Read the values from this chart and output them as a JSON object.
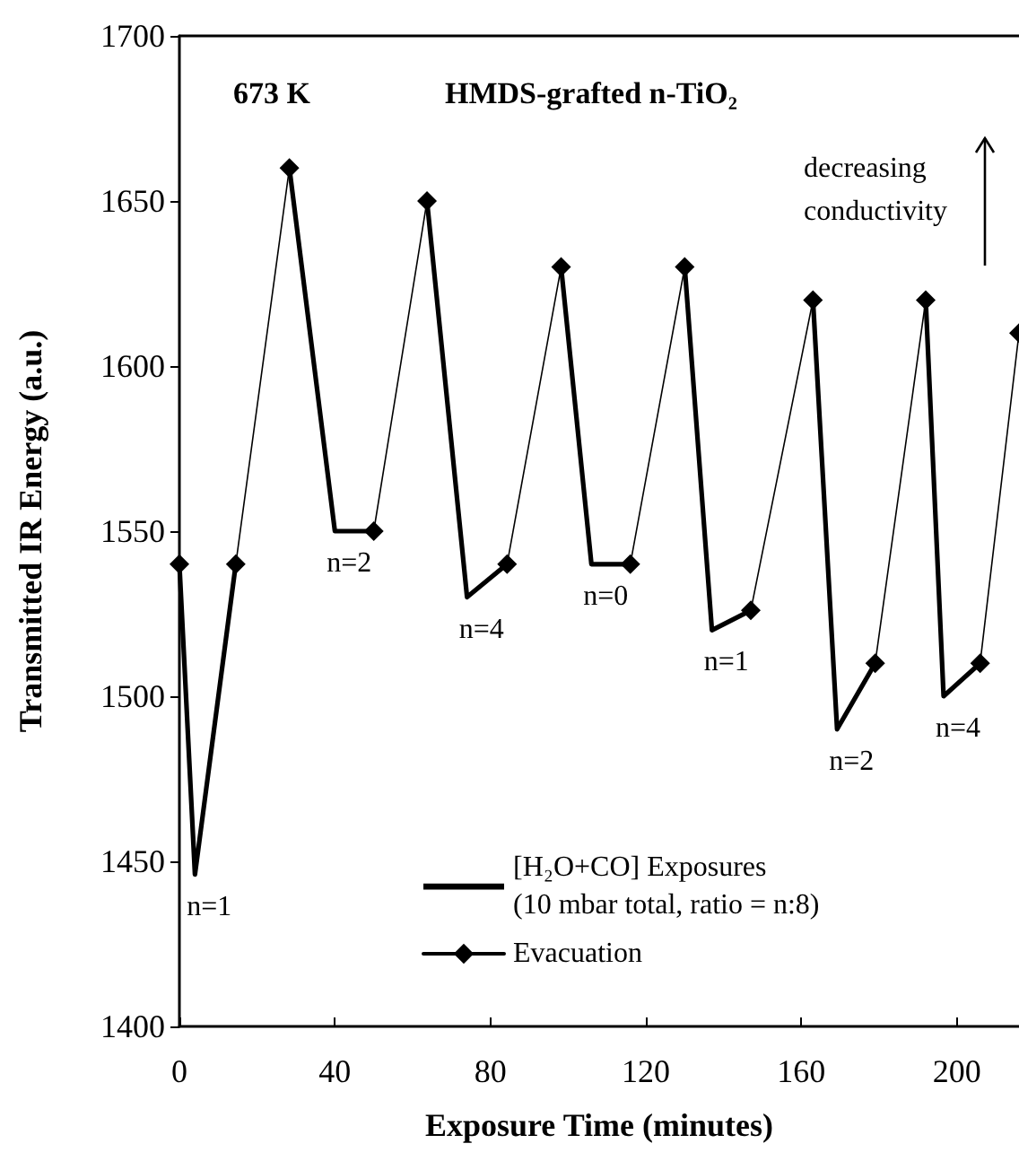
{
  "chart_data": {
    "type": "line",
    "xlabel": "Exposure Time (minutes)",
    "ylabel": "Transmitted IR Energy (a.u.)",
    "xlim": [
      0,
      216
    ],
    "ylim": [
      1400,
      1700
    ],
    "xticks": [
      0,
      40,
      80,
      120,
      160,
      200
    ],
    "yticks": [
      1400,
      1450,
      1500,
      1550,
      1600,
      1650,
      1700
    ],
    "grid": false,
    "legend": "bottom",
    "series": [
      {
        "color": "#000000",
        "marker": "diamond",
        "x": [
          0
        ],
        "values": [
          1540
        ]
      },
      {
        "name": "Evacuation",
        "color": "#000000",
        "marker": "diamond",
        "x": [
          14.5,
          28.3
        ],
        "values": [
          1540,
          1660
        ]
      },
      {
        "color": "#000000",
        "marker": "diamond",
        "x": [
          50,
          63.7
        ],
        "values": [
          1550,
          1650
        ]
      },
      {
        "color": "#000000",
        "marker": "diamond",
        "x": [
          84.3,
          98.2
        ],
        "values": [
          1540,
          1630
        ]
      },
      {
        "color": "#000000",
        "marker": "diamond",
        "x": [
          116,
          130
        ],
        "values": [
          1540,
          1630
        ]
      },
      {
        "color": "#000000",
        "marker": "diamond",
        "x": [
          147,
          163
        ],
        "values": [
          1526,
          1620
        ]
      },
      {
        "color": "#000000",
        "marker": "diamond",
        "x": [
          179,
          192
        ],
        "values": [
          1510,
          1620
        ]
      },
      {
        "color": "#000000",
        "marker": "diamond",
        "x": [
          206,
          216
        ],
        "values": [
          1510,
          1610
        ]
      },
      {
        "name": "[H₂O+CO] Exposures\n(10 mbar total, ratio = n:8)",
        "color": "#000000",
        "x": [
          0,
          4,
          14.5
        ],
        "values": [
          1540,
          1446,
          1540
        ]
      },
      {
        "color": "#000000",
        "x": [
          28.3,
          40,
          50
        ],
        "values": [
          1660,
          1550,
          1550
        ]
      },
      {
        "color": "#000000",
        "x": [
          63.7,
          74,
          84.3
        ],
        "values": [
          1650,
          1530,
          1540
        ]
      },
      {
        "color": "#000000",
        "x": [
          98.2,
          106,
          116
        ],
        "values": [
          1630,
          1540,
          1540
        ]
      },
      {
        "color": "#000000",
        "x": [
          130,
          137,
          147
        ],
        "values": [
          1630,
          1520,
          1526
        ]
      },
      {
        "color": "#000000",
        "x": [
          163,
          169.2,
          179
        ],
        "values": [
          1620,
          1490,
          1510
        ]
      },
      {
        "color": "#000000",
        "x": [
          192,
          196.6,
          206
        ],
        "values": [
          1620,
          1500,
          1510
        ]
      }
    ],
    "annotations": [
      "673 K",
      "HMDS-grafted n-TiO₂",
      "decreasing\nconductivity",
      {
        "text": "n=1",
        "x": 4,
        "y": 1446
      },
      {
        "text": "n=2",
        "x": 40,
        "y": 1550
      },
      {
        "text": "n=4",
        "x": 74,
        "y": 1530
      },
      {
        "text": "n=0",
        "x": 106,
        "y": 1540
      },
      {
        "text": "n=1",
        "x": 137,
        "y": 1520
      },
      {
        "text": "n=2",
        "x": 169.2,
        "y": 1490
      },
      {
        "text": "n=4",
        "x": 196.6,
        "y": 1500
      }
    ]
  }
}
